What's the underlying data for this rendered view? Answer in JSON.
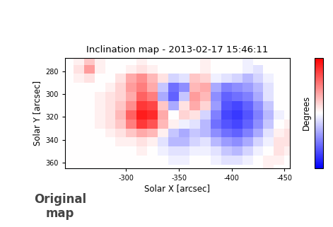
{
  "chart_data": {
    "type": "heatmap",
    "title": "Inclination map - 2013-02-17 15:46:11",
    "xlabel": "Solar X [arcsec]",
    "ylabel": "Solar Y [arcsec]",
    "annotation": "Original\nmap",
    "xlim": [
      -242,
      -455
    ],
    "xticks": [
      -300,
      -350,
      -400,
      -450
    ],
    "ylim": [
      365,
      268
    ],
    "yticks": [
      280,
      300,
      320,
      340,
      360
    ],
    "x": [
      -245,
      -255,
      -265,
      -275,
      -285,
      -295,
      -305,
      -315,
      -325,
      -335,
      -345,
      -355,
      -365,
      -375,
      -385,
      -395,
      -405,
      -415,
      -425,
      -435,
      -445,
      -455
    ],
    "y": [
      270,
      278,
      286,
      294,
      302,
      310,
      318,
      326,
      334,
      342,
      350,
      358,
      366
    ],
    "cells": [
      [
        0,
        5,
        20,
        5,
        0,
        0,
        0,
        5,
        0,
        0,
        0,
        0,
        0,
        5,
        0,
        0,
        0,
        -5,
        0,
        0,
        0,
        0
      ],
      [
        0,
        10,
        35,
        5,
        0,
        0,
        5,
        10,
        5,
        0,
        0,
        0,
        0,
        5,
        0,
        0,
        0,
        -5,
        -10,
        0,
        0,
        0
      ],
      [
        0,
        5,
        10,
        0,
        0,
        10,
        30,
        40,
        25,
        10,
        -15,
        -10,
        20,
        15,
        -5,
        -10,
        -15,
        -25,
        -15,
        -5,
        0,
        0
      ],
      [
        0,
        0,
        0,
        0,
        5,
        15,
        35,
        45,
        30,
        -20,
        -50,
        -40,
        25,
        30,
        -30,
        -45,
        -40,
        -35,
        -25,
        -10,
        0,
        0
      ],
      [
        0,
        0,
        0,
        5,
        10,
        15,
        30,
        55,
        45,
        -30,
        -55,
        -20,
        35,
        25,
        -40,
        -55,
        -50,
        -45,
        -30,
        -10,
        0,
        0
      ],
      [
        0,
        0,
        0,
        5,
        10,
        20,
        40,
        70,
        65,
        20,
        -30,
        10,
        30,
        15,
        -35,
        -60,
        -65,
        -55,
        -40,
        -20,
        0,
        0
      ],
      [
        0,
        0,
        0,
        5,
        10,
        25,
        55,
        80,
        75,
        30,
        0,
        15,
        10,
        -15,
        -45,
        -65,
        -70,
        -60,
        -45,
        -25,
        -5,
        0
      ],
      [
        0,
        0,
        0,
        5,
        10,
        20,
        45,
        70,
        60,
        25,
        5,
        -5,
        -10,
        -25,
        -50,
        -60,
        -65,
        -55,
        -40,
        -20,
        0,
        5
      ],
      [
        0,
        0,
        0,
        0,
        5,
        10,
        20,
        30,
        25,
        5,
        -20,
        -30,
        -20,
        -25,
        -40,
        -50,
        -55,
        -45,
        -30,
        -10,
        5,
        10
      ],
      [
        0,
        0,
        0,
        0,
        0,
        5,
        5,
        10,
        5,
        -10,
        -25,
        -25,
        -15,
        -10,
        -25,
        -35,
        -40,
        -30,
        -15,
        -5,
        10,
        10
      ],
      [
        0,
        0,
        0,
        0,
        0,
        0,
        0,
        5,
        0,
        -5,
        -10,
        -10,
        -5,
        -5,
        -10,
        -20,
        -25,
        -15,
        -5,
        0,
        10,
        5
      ],
      [
        0,
        0,
        0,
        0,
        0,
        0,
        0,
        0,
        0,
        0,
        -5,
        -5,
        0,
        0,
        -5,
        -10,
        -10,
        -5,
        0,
        5,
        5,
        0
      ],
      [
        0,
        0,
        0,
        0,
        0,
        0,
        0,
        0,
        0,
        0,
        0,
        0,
        0,
        0,
        0,
        0,
        0,
        0,
        0,
        5,
        0,
        0
      ]
    ],
    "colorbar": {
      "label": "Degrees",
      "range": [
        -90,
        90
      ]
    }
  }
}
